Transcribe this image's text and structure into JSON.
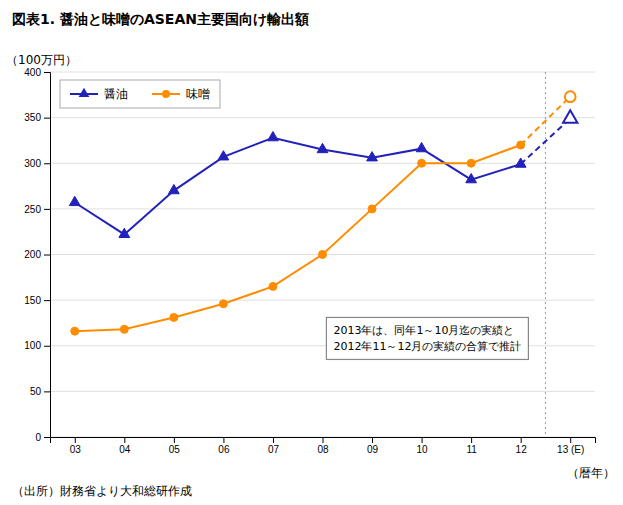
{
  "chart_data": {
    "type": "line",
    "title": "図表1. 醤油と味噌のASEAN主要国向け輸出額",
    "ylabel": "（100万円）",
    "xlabel": "（暦年）",
    "source": "（出所）財務省より大和総研作成",
    "annotation": [
      "2013年は、同年1～10月迄の実績と",
      "2012年11～12月の実績の合算で推計"
    ],
    "categories": [
      "03",
      "04",
      "05",
      "06",
      "07",
      "08",
      "09",
      "10",
      "11",
      "12",
      "13 (E)"
    ],
    "series": [
      {
        "name": "醤油",
        "color": "#2222bb",
        "marker": "triangle",
        "line_style": "solid",
        "values": [
          257,
          222,
          270,
          307,
          328,
          315,
          306,
          316,
          282,
          299,
          349
        ]
      },
      {
        "name": "味噌",
        "color": "#ff8c00",
        "marker": "circle",
        "line_style": "solid",
        "values": [
          116,
          118,
          131,
          146,
          165,
          200,
          250,
          300,
          300,
          320,
          373
        ]
      }
    ],
    "ylim": [
      0,
      400
    ],
    "yticks": [
      0,
      50,
      100,
      150,
      200,
      250,
      300,
      350,
      400
    ],
    "grid": true,
    "legend": "top-left"
  }
}
